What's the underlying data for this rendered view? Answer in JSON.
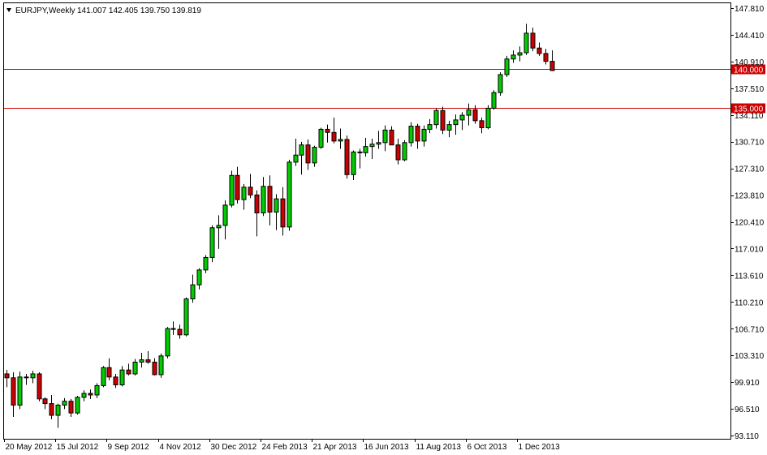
{
  "header": {
    "symbol": "EURJPY,Weekly",
    "ohlc": "141.007 142.405 139.750 139.819"
  },
  "chart_data": {
    "type": "candlestick",
    "ylim": [
      93.11,
      147.81
    ],
    "y_ticks": [
      "147.810",
      "144.410",
      "140.910",
      "137.510",
      "134.110",
      "130.710",
      "127.310",
      "123.810",
      "120.410",
      "117.010",
      "113.610",
      "110.210",
      "106.710",
      "103.310",
      "99.910",
      "96.510",
      "93.110"
    ],
    "x_ticks": [
      {
        "label": "20 May 2012",
        "index": 0
      },
      {
        "label": "15 Jul 2012",
        "index": 8
      },
      {
        "label": "9 Sep 2012",
        "index": 16
      },
      {
        "label": "4 Nov 2012",
        "index": 24
      },
      {
        "label": "30 Dec 2012",
        "index": 32
      },
      {
        "label": "24 Feb 2013",
        "index": 40
      },
      {
        "label": "21 Apr 2013",
        "index": 48
      },
      {
        "label": "16 Jun 2013",
        "index": 56
      },
      {
        "label": "11 Aug 2013",
        "index": 64
      },
      {
        "label": "6 Oct 2013",
        "index": 72
      },
      {
        "label": "1 Dec 2013",
        "index": 80
      }
    ],
    "horizontal_lines": [
      {
        "value": 140.0,
        "label": "140.000",
        "color": "#cc0000"
      },
      {
        "value": 135.0,
        "label": "135.000",
        "color": "#cc0000"
      }
    ],
    "colors": {
      "up": "#00cc00",
      "down": "#cc0000",
      "wick": "#000000"
    },
    "candles": [
      {
        "o": 101.0,
        "h": 101.5,
        "l": 99.3,
        "c": 100.5
      },
      {
        "o": 100.5,
        "h": 101.2,
        "l": 95.5,
        "c": 97.0
      },
      {
        "o": 97.0,
        "h": 101.3,
        "l": 96.5,
        "c": 100.6
      },
      {
        "o": 100.6,
        "h": 101.0,
        "l": 99.6,
        "c": 100.5
      },
      {
        "o": 100.5,
        "h": 101.4,
        "l": 99.8,
        "c": 101.0
      },
      {
        "o": 101.0,
        "h": 101.2,
        "l": 97.5,
        "c": 97.8
      },
      {
        "o": 97.8,
        "h": 98.0,
        "l": 96.5,
        "c": 97.2
      },
      {
        "o": 97.2,
        "h": 98.3,
        "l": 95.2,
        "c": 95.7
      },
      {
        "o": 95.7,
        "h": 97.2,
        "l": 94.1,
        "c": 97.0
      },
      {
        "o": 97.0,
        "h": 97.9,
        "l": 96.5,
        "c": 97.5
      },
      {
        "o": 97.5,
        "h": 97.8,
        "l": 95.5,
        "c": 96.0
      },
      {
        "o": 96.0,
        "h": 98.2,
        "l": 95.8,
        "c": 98.0
      },
      {
        "o": 98.0,
        "h": 98.9,
        "l": 97.5,
        "c": 98.5
      },
      {
        "o": 98.5,
        "h": 99.0,
        "l": 97.8,
        "c": 98.3
      },
      {
        "o": 98.3,
        "h": 99.8,
        "l": 97.9,
        "c": 99.5
      },
      {
        "o": 99.5,
        "h": 102.0,
        "l": 99.3,
        "c": 101.8
      },
      {
        "o": 101.8,
        "h": 103.0,
        "l": 100.2,
        "c": 100.6
      },
      {
        "o": 100.6,
        "h": 101.0,
        "l": 99.2,
        "c": 99.6
      },
      {
        "o": 99.6,
        "h": 102.0,
        "l": 99.4,
        "c": 101.5
      },
      {
        "o": 101.5,
        "h": 102.3,
        "l": 100.8,
        "c": 101.0
      },
      {
        "o": 101.0,
        "h": 102.9,
        "l": 100.8,
        "c": 102.5
      },
      {
        "o": 102.5,
        "h": 103.7,
        "l": 101.8,
        "c": 102.8
      },
      {
        "o": 102.8,
        "h": 103.9,
        "l": 102.3,
        "c": 102.5
      },
      {
        "o": 102.5,
        "h": 103.0,
        "l": 100.8,
        "c": 100.9
      },
      {
        "o": 100.9,
        "h": 103.6,
        "l": 100.5,
        "c": 103.3
      },
      {
        "o": 103.3,
        "h": 107.0,
        "l": 103.0,
        "c": 106.8
      },
      {
        "o": 106.8,
        "h": 107.7,
        "l": 106.0,
        "c": 106.7
      },
      {
        "o": 106.7,
        "h": 107.3,
        "l": 105.5,
        "c": 106.0
      },
      {
        "o": 106.0,
        "h": 110.8,
        "l": 105.8,
        "c": 110.6
      },
      {
        "o": 110.6,
        "h": 113.7,
        "l": 110.1,
        "c": 112.4
      },
      {
        "o": 112.4,
        "h": 114.5,
        "l": 111.8,
        "c": 114.3
      },
      {
        "o": 114.3,
        "h": 116.2,
        "l": 113.9,
        "c": 115.9
      },
      {
        "o": 115.9,
        "h": 120.0,
        "l": 115.3,
        "c": 119.7
      },
      {
        "o": 119.7,
        "h": 121.3,
        "l": 117.0,
        "c": 120.0
      },
      {
        "o": 120.0,
        "h": 123.2,
        "l": 118.2,
        "c": 122.6
      },
      {
        "o": 122.6,
        "h": 127.0,
        "l": 122.3,
        "c": 126.4
      },
      {
        "o": 126.4,
        "h": 127.5,
        "l": 122.8,
        "c": 123.3
      },
      {
        "o": 123.3,
        "h": 125.3,
        "l": 122.0,
        "c": 124.9
      },
      {
        "o": 124.9,
        "h": 126.6,
        "l": 123.5,
        "c": 123.9
      },
      {
        "o": 123.9,
        "h": 124.5,
        "l": 118.6,
        "c": 121.6
      },
      {
        "o": 121.6,
        "h": 126.2,
        "l": 121.2,
        "c": 125.0
      },
      {
        "o": 125.0,
        "h": 126.4,
        "l": 120.0,
        "c": 121.7
      },
      {
        "o": 121.7,
        "h": 124.0,
        "l": 119.4,
        "c": 123.4
      },
      {
        "o": 123.4,
        "h": 124.9,
        "l": 118.7,
        "c": 119.8
      },
      {
        "o": 119.8,
        "h": 128.4,
        "l": 119.3,
        "c": 128.1
      },
      {
        "o": 128.1,
        "h": 131.1,
        "l": 127.6,
        "c": 129.0
      },
      {
        "o": 129.0,
        "h": 130.7,
        "l": 126.5,
        "c": 130.3
      },
      {
        "o": 130.3,
        "h": 131.0,
        "l": 127.1,
        "c": 128.0
      },
      {
        "o": 128.0,
        "h": 130.2,
        "l": 127.5,
        "c": 130.0
      },
      {
        "o": 130.0,
        "h": 132.5,
        "l": 129.8,
        "c": 132.3
      },
      {
        "o": 132.3,
        "h": 132.9,
        "l": 130.6,
        "c": 131.9
      },
      {
        "o": 131.9,
        "h": 133.8,
        "l": 130.5,
        "c": 130.8
      },
      {
        "o": 130.8,
        "h": 132.4,
        "l": 129.8,
        "c": 131.0
      },
      {
        "o": 131.0,
        "h": 131.5,
        "l": 126.0,
        "c": 126.5
      },
      {
        "o": 126.5,
        "h": 129.6,
        "l": 125.8,
        "c": 129.4
      },
      {
        "o": 129.4,
        "h": 129.8,
        "l": 127.3,
        "c": 129.3
      },
      {
        "o": 129.3,
        "h": 131.2,
        "l": 128.8,
        "c": 130.1
      },
      {
        "o": 130.1,
        "h": 131.1,
        "l": 128.5,
        "c": 130.4
      },
      {
        "o": 130.4,
        "h": 132.1,
        "l": 129.8,
        "c": 130.6
      },
      {
        "o": 130.6,
        "h": 132.8,
        "l": 129.5,
        "c": 132.2
      },
      {
        "o": 132.2,
        "h": 132.7,
        "l": 130.6,
        "c": 130.3
      },
      {
        "o": 130.3,
        "h": 131.1,
        "l": 127.8,
        "c": 128.4
      },
      {
        "o": 128.4,
        "h": 130.9,
        "l": 128.2,
        "c": 130.6
      },
      {
        "o": 130.6,
        "h": 133.2,
        "l": 130.1,
        "c": 132.7
      },
      {
        "o": 132.7,
        "h": 133.0,
        "l": 129.8,
        "c": 130.8
      },
      {
        "o": 130.8,
        "h": 132.8,
        "l": 130.1,
        "c": 132.3
      },
      {
        "o": 132.3,
        "h": 133.6,
        "l": 131.8,
        "c": 132.9
      },
      {
        "o": 132.9,
        "h": 135.0,
        "l": 132.4,
        "c": 134.7
      },
      {
        "o": 134.7,
        "h": 135.2,
        "l": 131.7,
        "c": 132.2
      },
      {
        "o": 132.2,
        "h": 133.4,
        "l": 131.3,
        "c": 132.9
      },
      {
        "o": 132.9,
        "h": 134.2,
        "l": 131.6,
        "c": 133.5
      },
      {
        "o": 133.5,
        "h": 134.5,
        "l": 132.2,
        "c": 134.1
      },
      {
        "o": 134.1,
        "h": 135.6,
        "l": 132.8,
        "c": 134.8
      },
      {
        "o": 134.8,
        "h": 135.4,
        "l": 133.0,
        "c": 133.4
      },
      {
        "o": 133.4,
        "h": 133.8,
        "l": 131.8,
        "c": 132.5
      },
      {
        "o": 132.5,
        "h": 135.4,
        "l": 132.3,
        "c": 135.0
      },
      {
        "o": 135.0,
        "h": 137.3,
        "l": 134.8,
        "c": 137.0
      },
      {
        "o": 137.0,
        "h": 139.6,
        "l": 136.6,
        "c": 139.3
      },
      {
        "o": 139.3,
        "h": 141.7,
        "l": 139.0,
        "c": 141.3
      },
      {
        "o": 141.3,
        "h": 142.4,
        "l": 140.8,
        "c": 141.8
      },
      {
        "o": 141.8,
        "h": 142.9,
        "l": 141.0,
        "c": 142.1
      },
      {
        "o": 142.1,
        "h": 145.8,
        "l": 141.8,
        "c": 144.6
      },
      {
        "o": 144.6,
        "h": 145.3,
        "l": 142.3,
        "c": 142.7
      },
      {
        "o": 142.7,
        "h": 143.4,
        "l": 141.7,
        "c": 142.0
      },
      {
        "o": 142.0,
        "h": 142.6,
        "l": 140.6,
        "c": 141.0
      },
      {
        "o": 141.0,
        "h": 142.4,
        "l": 139.75,
        "c": 139.82
      }
    ]
  }
}
